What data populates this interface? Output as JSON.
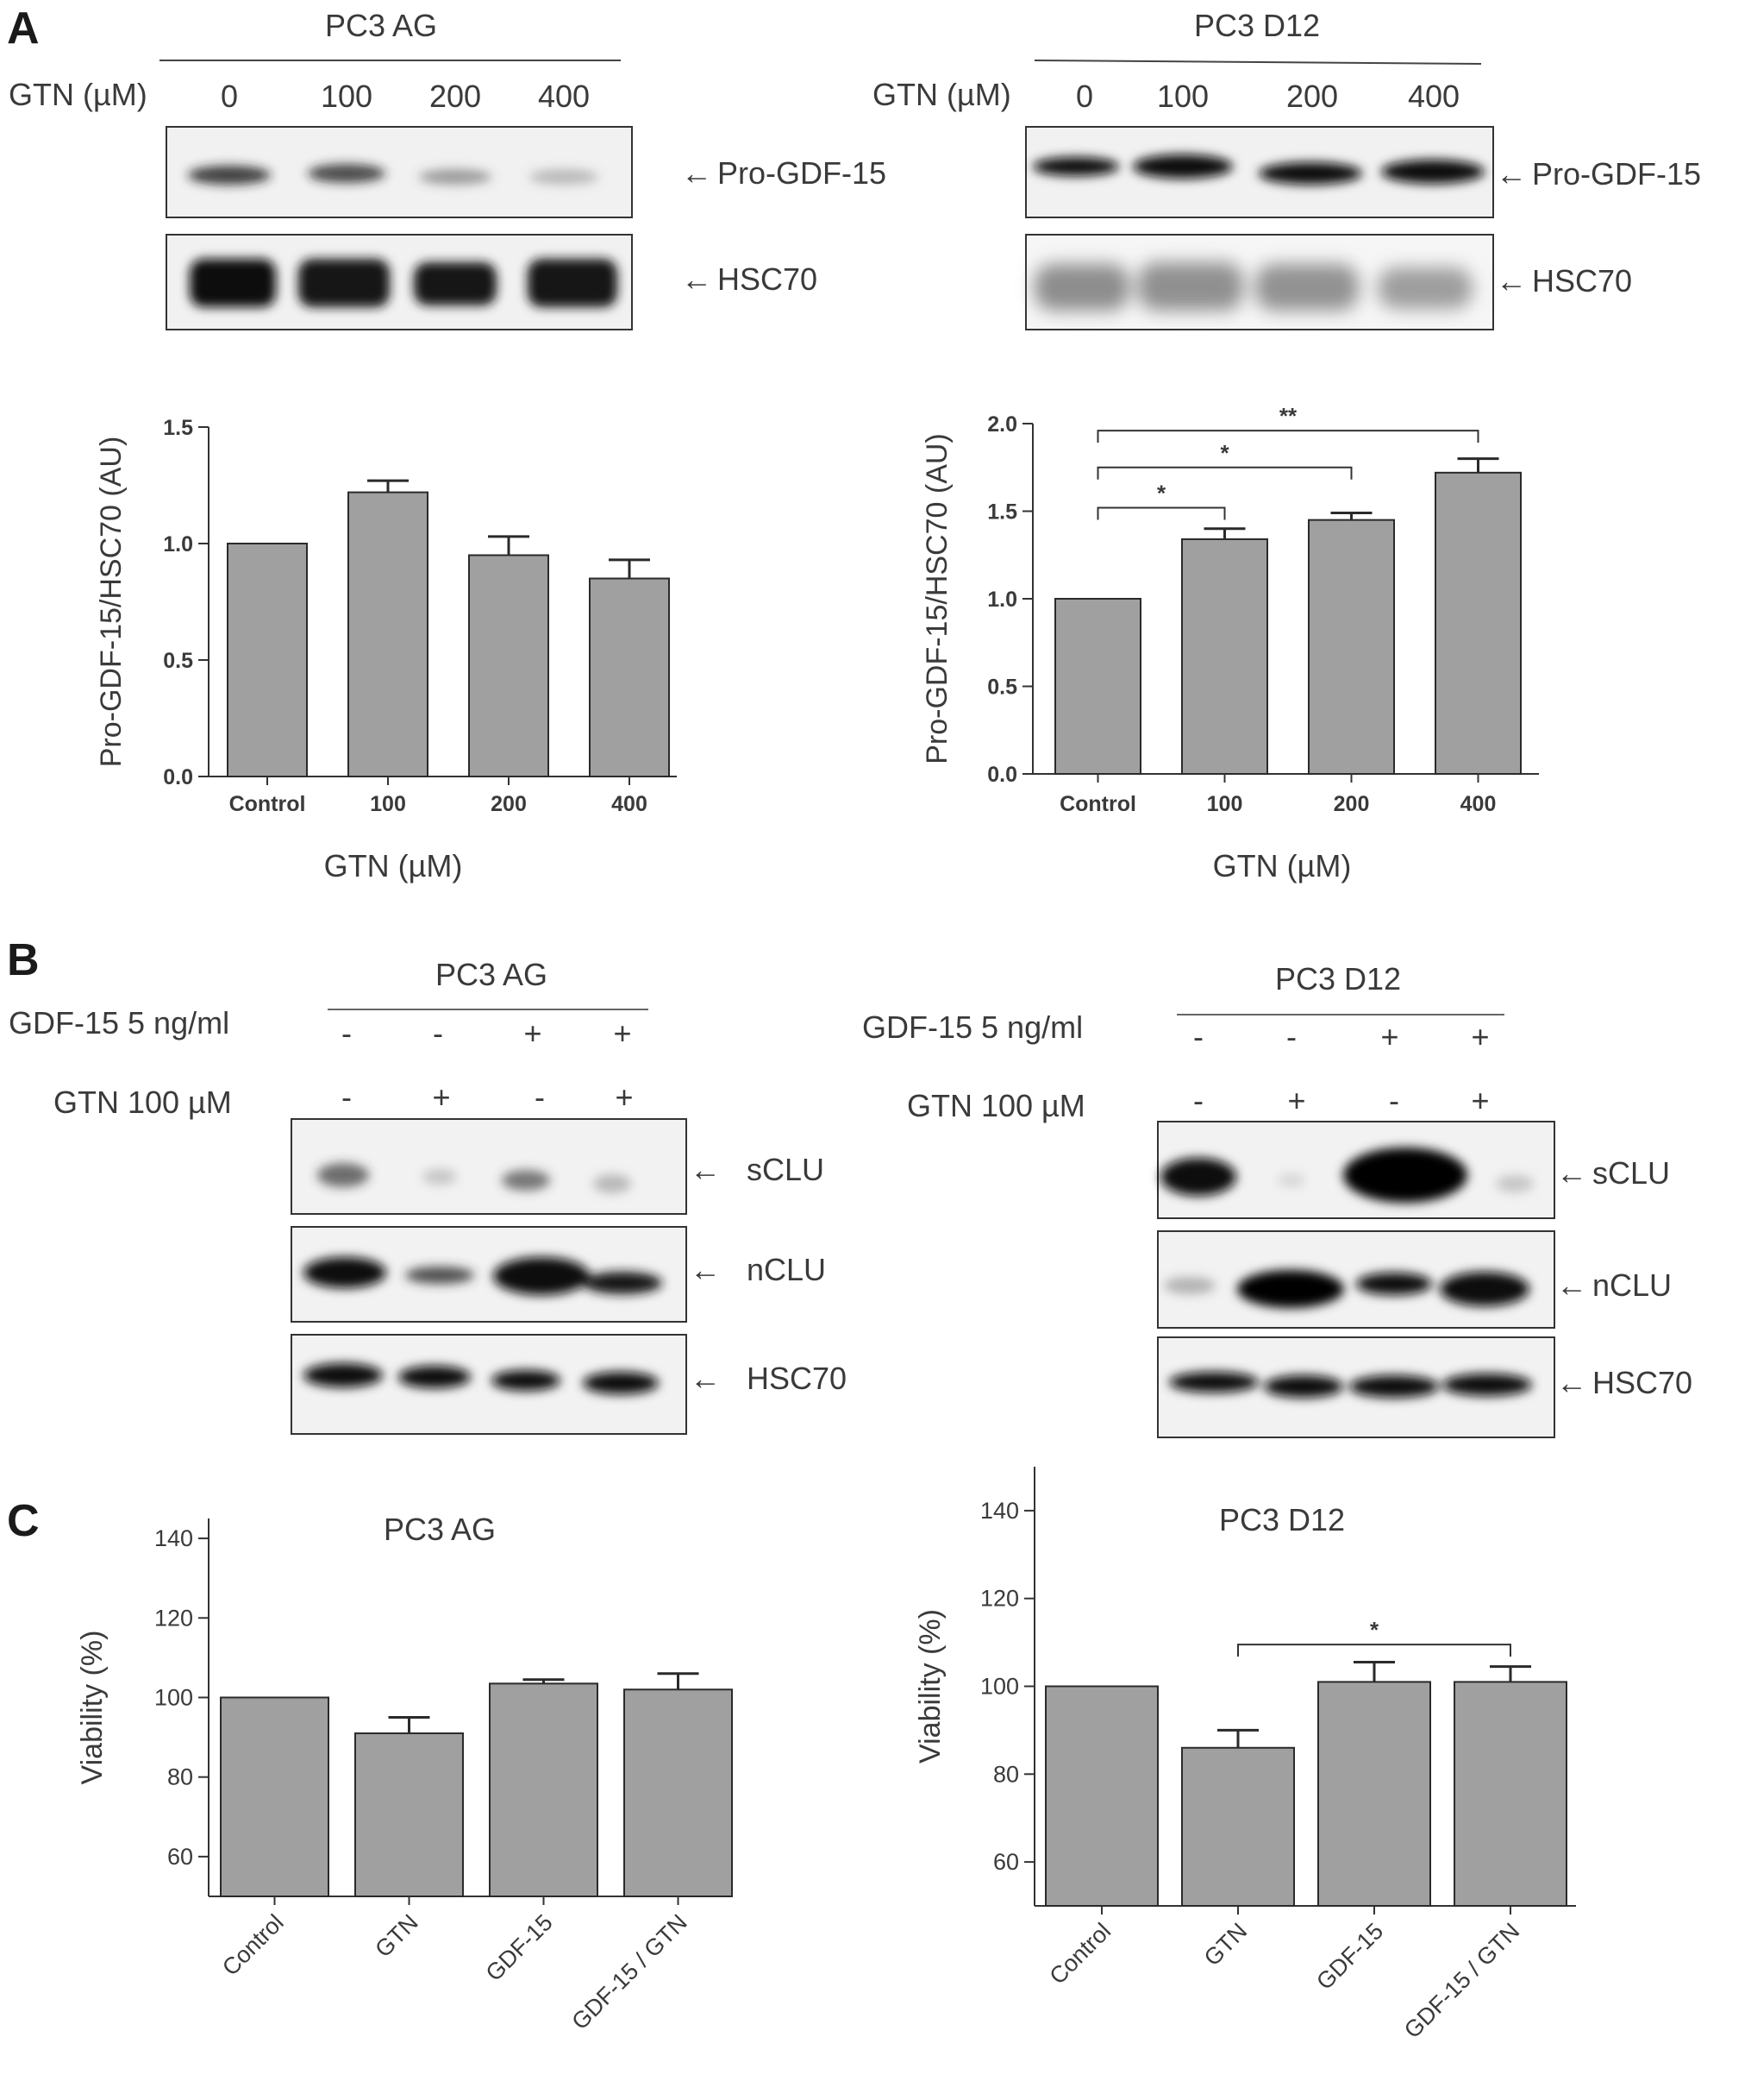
{
  "figure": {
    "panels": [
      {
        "letter": "A",
        "blots": [
          {
            "cell_line": "PC3 AG",
            "treatment_label": "GTN (µM)",
            "doses": [
              "0",
              "100",
              "200",
              "400"
            ],
            "band_labels": [
              "Pro-GDF-15",
              "HSC70"
            ]
          },
          {
            "cell_line": "PC3 D12",
            "treatment_label": "GTN (µM)",
            "doses": [
              "0",
              "100",
              "200",
              "400"
            ],
            "band_labels": [
              "Pro-GDF-15",
              "HSC70"
            ]
          }
        ]
      },
      {
        "letter": "B",
        "blots": [
          {
            "cell_line": "PC3 AG",
            "rows": [
              {
                "label": "GDF-15 5 ng/ml",
                "signs": [
                  "-",
                  "-",
                  "+",
                  "+"
                ]
              },
              {
                "label": "GTN 100 µM",
                "signs": [
                  "-",
                  "+",
                  "-",
                  "+"
                ]
              }
            ],
            "band_labels": [
              "sCLU",
              "nCLU",
              "HSC70"
            ]
          },
          {
            "cell_line": "PC3 D12",
            "rows": [
              {
                "label": "GDF-15 5 ng/ml",
                "signs": [
                  "-",
                  "-",
                  "+",
                  "+"
                ]
              },
              {
                "label": "GTN 100 µM",
                "signs": [
                  "-",
                  "+",
                  "-",
                  "+"
                ]
              }
            ],
            "band_labels": [
              "sCLU",
              "nCLU",
              "HSC70"
            ]
          }
        ]
      },
      {
        "letter": "C"
      }
    ]
  },
  "chart_data": [
    {
      "type": "bar",
      "panel": "A",
      "title": "",
      "categories": [
        "Control",
        "100",
        "200",
        "400"
      ],
      "values": [
        1.0,
        1.22,
        0.95,
        0.85
      ],
      "errors": [
        0,
        0.05,
        0.08,
        0.08
      ],
      "ylabel": "Pro-GDF-15/HSC70 (AU)",
      "xlabel": "GTN (µM)",
      "ylim": [
        0,
        1.5
      ],
      "yticks": [
        "0.0",
        "0.5",
        "1.0",
        "1.5"
      ],
      "significance": [],
      "bar_color": "#a0a0a0"
    },
    {
      "type": "bar",
      "panel": "A",
      "title": "",
      "categories": [
        "Control",
        "100",
        "200",
        "400"
      ],
      "values": [
        1.0,
        1.34,
        1.45,
        1.72
      ],
      "errors": [
        0,
        0.06,
        0.04,
        0.08
      ],
      "ylabel": "Pro-GDF-15/HSC70 (AU)",
      "xlabel": "GTN (µM)",
      "ylim": [
        0,
        2.0
      ],
      "yticks": [
        "0.0",
        "0.5",
        "1.0",
        "1.5",
        "2.0"
      ],
      "significance": [
        {
          "from": 0,
          "to": 1,
          "label": "*"
        },
        {
          "from": 0,
          "to": 2,
          "label": "*"
        },
        {
          "from": 0,
          "to": 3,
          "label": "**"
        }
      ],
      "bar_color": "#a0a0a0"
    },
    {
      "type": "bar",
      "panel": "C",
      "title": "PC3 AG",
      "categories": [
        "Control",
        "GTN",
        "GDF-15",
        "GDF-15 / GTN"
      ],
      "values": [
        100,
        91,
        103.5,
        102
      ],
      "errors": [
        0,
        4,
        1,
        4
      ],
      "ylabel": "Viability (%)",
      "xlabel": "",
      "ylim": [
        50,
        145
      ],
      "yticks": [
        "60",
        "80",
        "100",
        "120",
        "140"
      ],
      "significance": [],
      "bar_color": "#a0a0a0"
    },
    {
      "type": "bar",
      "panel": "C",
      "title": "PC3 D12",
      "categories": [
        "Control",
        "GTN",
        "GDF-15",
        "GDF-15 / GTN"
      ],
      "values": [
        100,
        86,
        101,
        101
      ],
      "errors": [
        0,
        4,
        4.5,
        3.5
      ],
      "ylabel": "Viability (%)",
      "xlabel": "",
      "ylim": [
        50,
        150
      ],
      "yticks": [
        "60",
        "80",
        "100",
        "120",
        "140"
      ],
      "significance": [
        {
          "from": 1,
          "to": 3,
          "label": "*"
        }
      ],
      "bar_color": "#a0a0a0"
    }
  ]
}
